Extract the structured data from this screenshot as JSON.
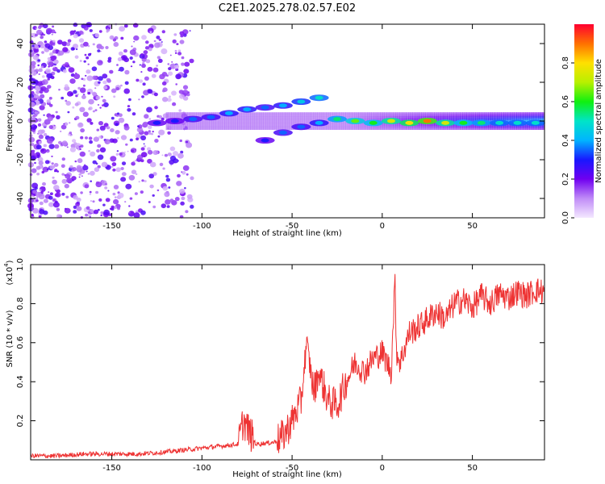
{
  "title": "C2E1.2025.278.02.57.E02",
  "chart_data": [
    {
      "type": "heatmap",
      "name": "spectrogram",
      "xlabel": "Height of straight line (km)",
      "ylabel": "Frequency (Hz)",
      "xlim": [
        -195,
        90
      ],
      "ylim": [
        -50,
        50
      ],
      "xticks": [
        -150,
        -100,
        -50,
        0,
        50
      ],
      "yticks": [
        40,
        20,
        0,
        -20,
        -40
      ],
      "colorbar": {
        "label": "Normalized spectral amplitude",
        "range": [
          0,
          1
        ],
        "ticks": [
          0.0,
          0.2,
          0.4,
          0.6,
          0.8
        ]
      },
      "track_note": "Main signal ridge near 0 Hz from about -125 km to 90 km, with a split branch between -65 km and -30 km reaching about +15 Hz and -10 Hz; broadband noise below -120 km.",
      "track": [
        {
          "x": -125,
          "y": -1,
          "amp": 0.3
        },
        {
          "x": -115,
          "y": 0,
          "amp": 0.3
        },
        {
          "x": -105,
          "y": 1,
          "amp": 0.35
        },
        {
          "x": -95,
          "y": 2,
          "amp": 0.35
        },
        {
          "x": -85,
          "y": 4,
          "amp": 0.4
        },
        {
          "x": -75,
          "y": 6,
          "amp": 0.4
        },
        {
          "x": -65,
          "y": 7,
          "amp": 0.35
        },
        {
          "x": -55,
          "y": 8,
          "amp": 0.4
        },
        {
          "x": -45,
          "y": 10,
          "amp": 0.45
        },
        {
          "x": -35,
          "y": 12,
          "amp": 0.5
        },
        {
          "x": -65,
          "y": -10,
          "amp": 0.3
        },
        {
          "x": -55,
          "y": -6,
          "amp": 0.35
        },
        {
          "x": -45,
          "y": -3,
          "amp": 0.35
        },
        {
          "x": -35,
          "y": -1,
          "amp": 0.4
        },
        {
          "x": -25,
          "y": 1,
          "amp": 0.55
        },
        {
          "x": -15,
          "y": 0,
          "amp": 0.65
        },
        {
          "x": -5,
          "y": -1,
          "amp": 0.6
        },
        {
          "x": 5,
          "y": 0,
          "amp": 0.75
        },
        {
          "x": 15,
          "y": -1,
          "amp": 0.8
        },
        {
          "x": 25,
          "y": 0,
          "amp": 0.9
        },
        {
          "x": 35,
          "y": -1,
          "amp": 0.75
        },
        {
          "x": 45,
          "y": -1,
          "amp": 0.6
        },
        {
          "x": 55,
          "y": -1,
          "amp": 0.55
        },
        {
          "x": 65,
          "y": -1,
          "amp": 0.5
        },
        {
          "x": 75,
          "y": -1,
          "amp": 0.5
        },
        {
          "x": 85,
          "y": -1,
          "amp": 0.5
        }
      ]
    },
    {
      "type": "line",
      "name": "snr",
      "xlabel": "Height of straight line (km)",
      "ylabel": "SNR (10 * v/v)",
      "y_scale_label": "(x10",
      "y_scale_exp": "4",
      "xlim": [
        -195,
        90
      ],
      "ylim": [
        0,
        1.0
      ],
      "xticks": [
        -150,
        -100,
        -50,
        0,
        50
      ],
      "yticks": [
        1.0,
        0.8,
        0.6,
        0.4,
        0.2
      ],
      "color": "#ee3333",
      "series": [
        {
          "name": "SNR",
          "x": [
            -195,
            -180,
            -165,
            -150,
            -135,
            -120,
            -110,
            -100,
            -90,
            -80,
            -77,
            -70,
            -60,
            -55,
            -50,
            -45,
            -42,
            -38,
            -35,
            -30,
            -25,
            -20,
            -15,
            -10,
            -5,
            0,
            5,
            7,
            8,
            10,
            15,
            20,
            25,
            30,
            35,
            40,
            45,
            50,
            55,
            60,
            65,
            70,
            75,
            80,
            85,
            90
          ],
          "y": [
            0.02,
            0.02,
            0.03,
            0.03,
            0.03,
            0.04,
            0.05,
            0.06,
            0.07,
            0.08,
            0.2,
            0.08,
            0.09,
            0.12,
            0.2,
            0.3,
            0.6,
            0.35,
            0.45,
            0.3,
            0.28,
            0.4,
            0.5,
            0.45,
            0.52,
            0.55,
            0.45,
            0.92,
            0.55,
            0.5,
            0.65,
            0.68,
            0.72,
            0.76,
            0.72,
            0.8,
            0.82,
            0.78,
            0.84,
            0.8,
            0.85,
            0.83,
            0.86,
            0.84,
            0.87,
            0.86
          ]
        }
      ]
    }
  ]
}
